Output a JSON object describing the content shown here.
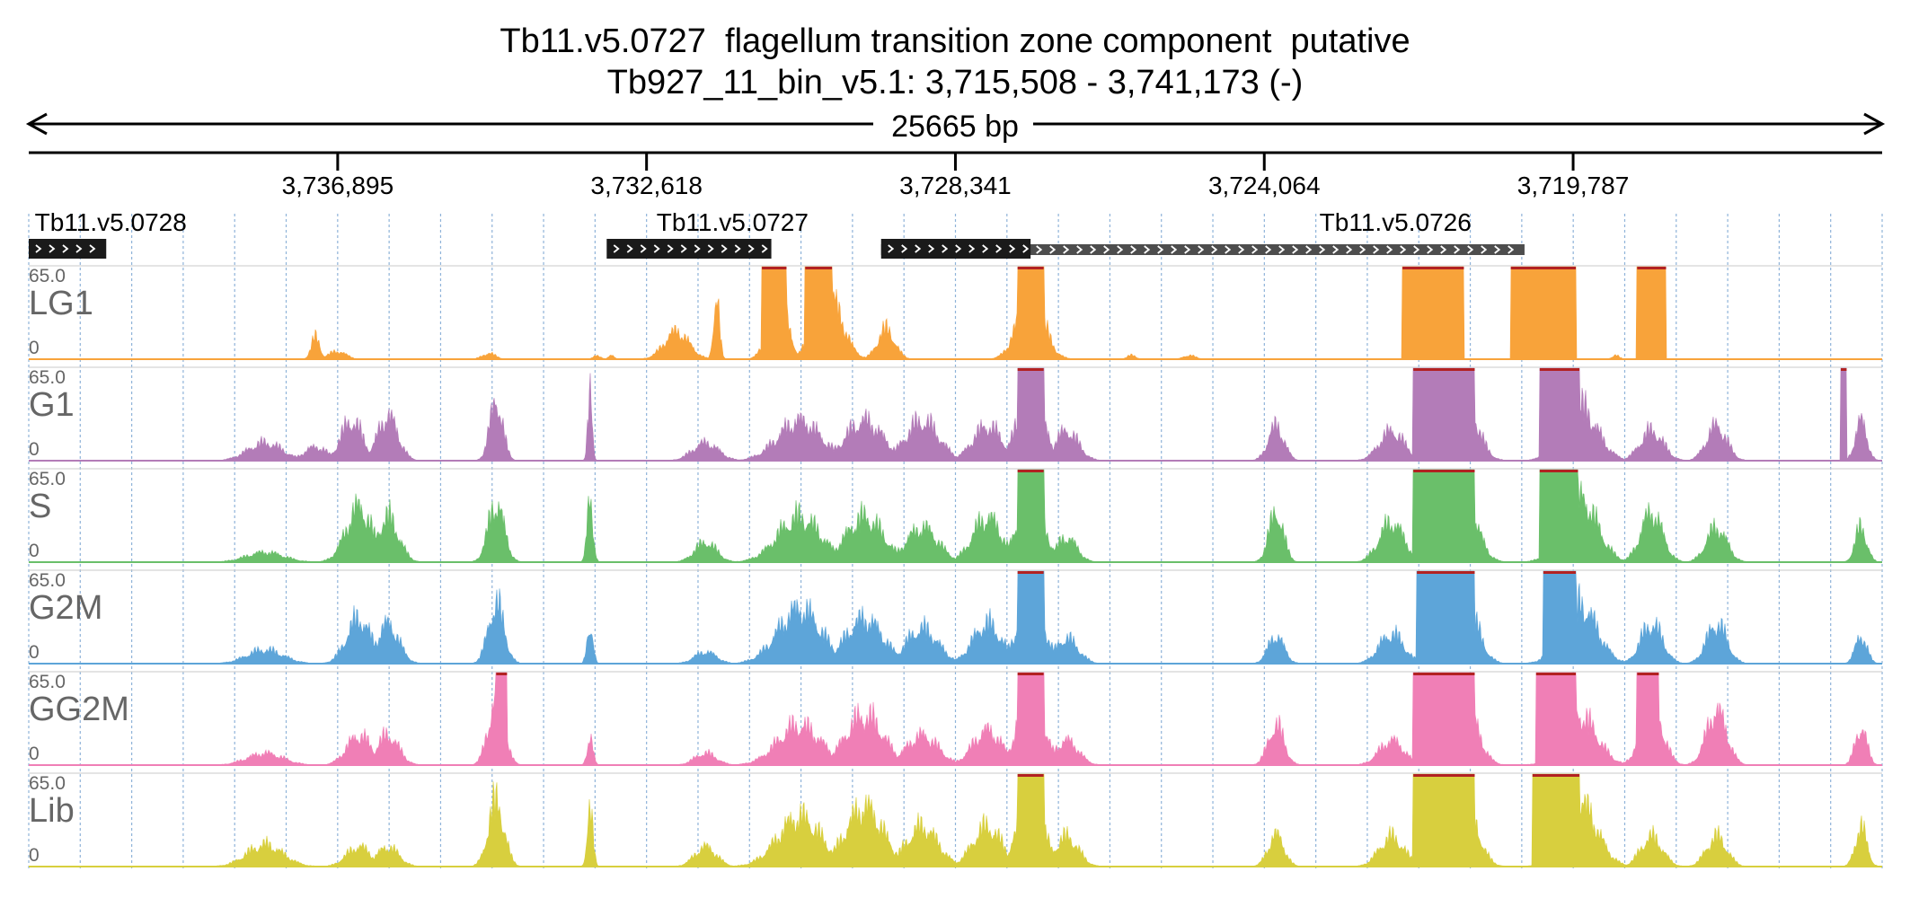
{
  "chart_data": {
    "type": "area",
    "title": "Tb11.v5.0727  flagellum transition zone component  putative",
    "subtitle": "Tb927_11_bin_v5.1: 3,715,508 - 3,741,173 (-)",
    "span_label": "25665 bp",
    "region": {
      "start": 3715508,
      "end": 3741173,
      "strand": "-"
    },
    "ticks": [
      {
        "value": 3736895,
        "label": "3,736,895"
      },
      {
        "value": 3732618,
        "label": "3,732,618"
      },
      {
        "value": 3728341,
        "label": "3,728,341"
      },
      {
        "value": 3724064,
        "label": "3,724,064"
      },
      {
        "value": 3719787,
        "label": "3,719,787"
      }
    ],
    "genes": [
      {
        "name": "Tb11.v5.0728",
        "start": 3740100,
        "end": 3741173,
        "label_pos": 3741090
      },
      {
        "name": "Tb11.v5.0727",
        "start": 3730890,
        "end": 3733170,
        "label_pos": 3732480
      },
      {
        "name": "Tb11.v5.0726",
        "start": 3720460,
        "end": 3729370,
        "label_pos": 3723300,
        "cds": [
          {
            "start": 3727300,
            "end": 3729370
          }
        ]
      }
    ],
    "y_range": {
      "max": 65.0,
      "min": 0,
      "max_label": "65.0",
      "min_label": "0"
    },
    "tracks": [
      {
        "name": "LG1",
        "color": "#f8a33a",
        "peaks": [
          [
            3737200,
            22,
            60
          ],
          [
            3736900,
            8,
            120
          ],
          [
            3734800,
            6,
            90
          ],
          [
            3733300,
            4,
            50
          ],
          [
            3733100,
            4,
            40
          ],
          [
            3732200,
            28,
            170
          ],
          [
            3731650,
            65,
            40
          ],
          [
            3730800,
            65,
            130
          ],
          [
            3730100,
            65,
            190
          ],
          [
            3729300,
            30,
            120
          ],
          [
            3727300,
            65,
            180
          ],
          [
            3725900,
            4,
            60
          ],
          [
            3725100,
            4,
            80
          ],
          [
            3719200,
            4,
            50
          ]
        ],
        "clips": [
          [
            3730680,
            3731020
          ],
          [
            3730050,
            3730420
          ],
          [
            3727120,
            3727480
          ],
          [
            3721300,
            3722150
          ],
          [
            3719750,
            3720650
          ],
          [
            3718500,
            3718900
          ]
        ]
      },
      {
        "name": "G1",
        "color": "#b37cb8",
        "peaks": [
          [
            3737900,
            18,
            240
          ],
          [
            3737200,
            14,
            160
          ],
          [
            3736700,
            40,
            150
          ],
          [
            3736200,
            45,
            140
          ],
          [
            3734700,
            60,
            90
          ],
          [
            3733400,
            65,
            30
          ],
          [
            3731800,
            18,
            180
          ],
          [
            3730500,
            40,
            300
          ],
          [
            3729600,
            40,
            260
          ],
          [
            3728800,
            40,
            230
          ],
          [
            3727900,
            35,
            200
          ],
          [
            3727300,
            65,
            180
          ],
          [
            3726800,
            30,
            160
          ],
          [
            3723900,
            35,
            110
          ],
          [
            3722300,
            30,
            170
          ],
          [
            3721300,
            65,
            180
          ],
          [
            3719700,
            55,
            240
          ],
          [
            3718700,
            30,
            160
          ],
          [
            3717800,
            35,
            140
          ],
          [
            3715800,
            40,
            80
          ]
        ],
        "clips": [
          [
            3727120,
            3727480
          ],
          [
            3721150,
            3722000
          ],
          [
            3719700,
            3720250
          ],
          [
            3716000,
            3716080
          ]
        ]
      },
      {
        "name": "S",
        "color": "#6abf6a",
        "peaks": [
          [
            3737900,
            10,
            260
          ],
          [
            3736600,
            55,
            180
          ],
          [
            3736200,
            45,
            150
          ],
          [
            3734700,
            60,
            110
          ],
          [
            3733400,
            65,
            40
          ],
          [
            3731800,
            20,
            150
          ],
          [
            3730500,
            45,
            300
          ],
          [
            3729600,
            45,
            260
          ],
          [
            3728800,
            35,
            220
          ],
          [
            3727900,
            45,
            200
          ],
          [
            3727300,
            65,
            180
          ],
          [
            3726800,
            25,
            140
          ],
          [
            3723900,
            50,
            100
          ],
          [
            3722300,
            40,
            170
          ],
          [
            3721300,
            65,
            180
          ],
          [
            3719700,
            65,
            240
          ],
          [
            3718700,
            50,
            150
          ],
          [
            3717800,
            35,
            140
          ],
          [
            3715800,
            35,
            80
          ]
        ],
        "clips": [
          [
            3727120,
            3727480
          ],
          [
            3721150,
            3722000
          ],
          [
            3719720,
            3720250
          ]
        ]
      },
      {
        "name": "G2M",
        "color": "#5da5d9",
        "peaks": [
          [
            3737900,
            14,
            250
          ],
          [
            3736600,
            45,
            170
          ],
          [
            3736200,
            40,
            150
          ],
          [
            3734700,
            60,
            110
          ],
          [
            3733400,
            40,
            40
          ],
          [
            3731800,
            12,
            150
          ],
          [
            3730500,
            55,
            300
          ],
          [
            3729600,
            45,
            260
          ],
          [
            3728800,
            35,
            220
          ],
          [
            3727900,
            40,
            200
          ],
          [
            3727300,
            65,
            180
          ],
          [
            3726800,
            25,
            160
          ],
          [
            3723900,
            28,
            110
          ],
          [
            3722300,
            30,
            170
          ],
          [
            3721300,
            65,
            180
          ],
          [
            3719700,
            60,
            240
          ],
          [
            3718700,
            40,
            150
          ],
          [
            3717800,
            40,
            140
          ],
          [
            3715800,
            28,
            80
          ]
        ],
        "clips": [
          [
            3727120,
            3727480
          ],
          [
            3721150,
            3721950
          ],
          [
            3719750,
            3720200
          ]
        ]
      },
      {
        "name": "GG2M",
        "color": "#f07fb6",
        "peaks": [
          [
            3737900,
            12,
            250
          ],
          [
            3736600,
            30,
            170
          ],
          [
            3736200,
            30,
            150
          ],
          [
            3734700,
            65,
            110
          ],
          [
            3733400,
            28,
            40
          ],
          [
            3731800,
            12,
            150
          ],
          [
            3730500,
            40,
            300
          ],
          [
            3729600,
            50,
            260
          ],
          [
            3728800,
            30,
            220
          ],
          [
            3727900,
            35,
            200
          ],
          [
            3727300,
            65,
            180
          ],
          [
            3726800,
            25,
            160
          ],
          [
            3723900,
            40,
            110
          ],
          [
            3722300,
            25,
            170
          ],
          [
            3721300,
            65,
            180
          ],
          [
            3719700,
            50,
            240
          ],
          [
            3718700,
            60,
            150
          ],
          [
            3717800,
            55,
            140
          ],
          [
            3715800,
            38,
            80
          ]
        ],
        "clips": [
          [
            3734550,
            3734700
          ],
          [
            3727120,
            3727480
          ],
          [
            3721150,
            3722000
          ],
          [
            3719750,
            3720300
          ],
          [
            3718600,
            3718900
          ]
        ]
      },
      {
        "name": "Lib",
        "color": "#d8cf3e",
        "peaks": [
          [
            3737900,
            22,
            250
          ],
          [
            3736600,
            20,
            170
          ],
          [
            3736200,
            20,
            150
          ],
          [
            3734700,
            65,
            110
          ],
          [
            3733400,
            55,
            40
          ],
          [
            3731800,
            20,
            150
          ],
          [
            3730500,
            50,
            300
          ],
          [
            3729600,
            60,
            260
          ],
          [
            3728800,
            40,
            220
          ],
          [
            3727900,
            40,
            200
          ],
          [
            3727300,
            65,
            180
          ],
          [
            3726800,
            30,
            160
          ],
          [
            3723900,
            32,
            110
          ],
          [
            3722300,
            30,
            170
          ],
          [
            3721300,
            65,
            180
          ],
          [
            3719700,
            65,
            240
          ],
          [
            3718700,
            30,
            150
          ],
          [
            3717800,
            30,
            140
          ],
          [
            3715800,
            40,
            80
          ]
        ],
        "clips": [
          [
            3727120,
            3727480
          ],
          [
            3721150,
            3722000
          ],
          [
            3719700,
            3720350
          ]
        ]
      }
    ],
    "colors": {
      "axis": "#000000",
      "grid": "#8fb3d9",
      "gene_box": "#1a1a1a",
      "gene_utr": "#4d4d4d",
      "track_label": "#666666",
      "clip": "#b22222"
    }
  }
}
